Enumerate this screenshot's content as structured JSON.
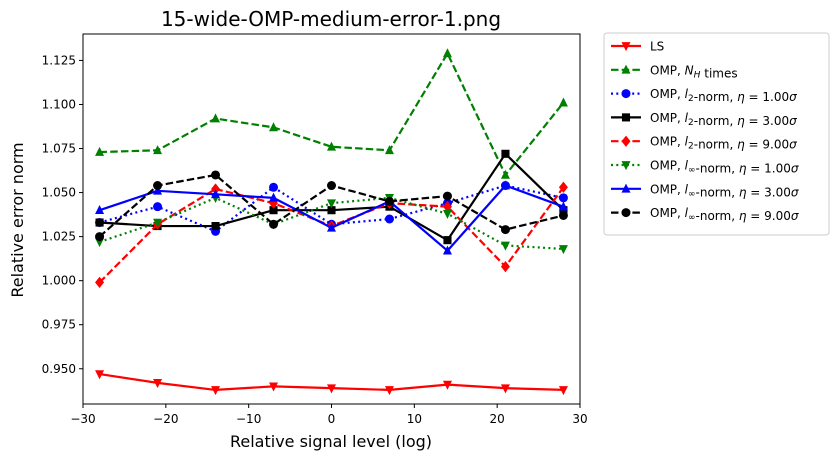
{
  "chart_data": {
    "type": "line",
    "title": "15-wide-OMP-medium-error-1.png",
    "xlabel": "Relative signal level (log)",
    "ylabel": "Relative error norm",
    "xlim": [
      -30,
      30
    ],
    "ylim": [
      0.93,
      1.14
    ],
    "xticks": [
      -30,
      -20,
      -10,
      0,
      10,
      20,
      30
    ],
    "yticks": [
      0.95,
      0.975,
      1.0,
      1.025,
      1.05,
      1.075,
      1.1,
      1.125
    ],
    "xtick_labels": [
      "−30",
      "−20",
      "−10",
      "0",
      "10",
      "20",
      "30"
    ],
    "ytick_labels": [
      "0.950",
      "0.975",
      "1.000",
      "1.025",
      "1.050",
      "1.075",
      "1.100",
      "1.125"
    ],
    "grid": false,
    "legend_position": "outside-right-top",
    "x": [
      -28,
      -21,
      -14,
      -7,
      0,
      7,
      14,
      21,
      28
    ],
    "series": [
      {
        "name": "LS",
        "legend_parts": [
          {
            "t": "LS"
          }
        ],
        "color": "#ff0000",
        "dash": "solid",
        "marker": "triangle-down",
        "values": [
          0.947,
          0.942,
          0.938,
          0.94,
          0.939,
          0.938,
          0.941,
          0.939,
          0.938
        ]
      },
      {
        "name": "OMP, N_H times",
        "legend_parts": [
          {
            "t": "OMP, "
          },
          {
            "t": "N",
            "i": true
          },
          {
            "t": "H",
            "i": true,
            "sub": true
          },
          {
            "t": " times"
          }
        ],
        "color": "#008000",
        "dash": "dashed",
        "marker": "triangle-up",
        "values": [
          1.073,
          1.074,
          1.092,
          1.087,
          1.076,
          1.074,
          1.129,
          1.06,
          1.101
        ]
      },
      {
        "name": "OMP, l_2-norm, η = 1.00σ",
        "legend_parts": [
          {
            "t": "OMP, "
          },
          {
            "t": "l",
            "i": true
          },
          {
            "t": "2",
            "sub": true
          },
          {
            "t": "-norm, "
          },
          {
            "t": "η",
            "i": true
          },
          {
            "t": " = 1.00"
          },
          {
            "t": "σ",
            "i": true
          }
        ],
        "color": "#0000ff",
        "dash": "dotted",
        "marker": "circle",
        "values": [
          1.033,
          1.042,
          1.028,
          1.053,
          1.032,
          1.035,
          1.044,
          1.054,
          1.047
        ]
      },
      {
        "name": "OMP, l_2-norm, η = 3.00σ",
        "legend_parts": [
          {
            "t": "OMP, "
          },
          {
            "t": "l",
            "i": true
          },
          {
            "t": "2",
            "sub": true
          },
          {
            "t": "-norm, "
          },
          {
            "t": "η",
            "i": true
          },
          {
            "t": " = 3.00"
          },
          {
            "t": "σ",
            "i": true
          }
        ],
        "color": "#000000",
        "dash": "solid",
        "marker": "square",
        "values": [
          1.033,
          1.031,
          1.031,
          1.04,
          1.04,
          1.042,
          1.023,
          1.072,
          1.04
        ]
      },
      {
        "name": "OMP, l_2-norm, η = 9.00σ",
        "legend_parts": [
          {
            "t": "OMP, "
          },
          {
            "t": "l",
            "i": true
          },
          {
            "t": "2",
            "sub": true
          },
          {
            "t": "-norm, "
          },
          {
            "t": "η",
            "i": true
          },
          {
            "t": " = 9.00"
          },
          {
            "t": "σ",
            "i": true
          }
        ],
        "color": "#ff0000",
        "dash": "dashed",
        "marker": "diamond",
        "values": [
          0.999,
          1.032,
          1.052,
          1.044,
          1.031,
          1.044,
          1.042,
          1.008,
          1.053
        ]
      },
      {
        "name": "OMP, l_∞-norm, η = 1.00σ",
        "legend_parts": [
          {
            "t": "OMP, "
          },
          {
            "t": "l",
            "i": true
          },
          {
            "t": "∞",
            "sub": true
          },
          {
            "t": "-norm, "
          },
          {
            "t": "η",
            "i": true
          },
          {
            "t": " = 1.00"
          },
          {
            "t": "σ",
            "i": true
          }
        ],
        "color": "#008000",
        "dash": "dotted",
        "marker": "triangle-down",
        "values": [
          1.022,
          1.033,
          1.047,
          1.032,
          1.044,
          1.047,
          1.038,
          1.02,
          1.018
        ]
      },
      {
        "name": "OMP, l_∞-norm, η = 3.00σ",
        "legend_parts": [
          {
            "t": "OMP, "
          },
          {
            "t": "l",
            "i": true
          },
          {
            "t": "∞",
            "sub": true
          },
          {
            "t": "-norm, "
          },
          {
            "t": "η",
            "i": true
          },
          {
            "t": " = 3.00"
          },
          {
            "t": "σ",
            "i": true
          }
        ],
        "color": "#0000ff",
        "dash": "solid",
        "marker": "triangle-up",
        "values": [
          1.04,
          1.051,
          1.049,
          1.047,
          1.03,
          1.045,
          1.017,
          1.054,
          1.042
        ]
      },
      {
        "name": "OMP, l_∞-norm, η = 9.00σ",
        "legend_parts": [
          {
            "t": "OMP, "
          },
          {
            "t": "l",
            "i": true
          },
          {
            "t": "∞",
            "sub": true
          },
          {
            "t": "-norm, "
          },
          {
            "t": "η",
            "i": true
          },
          {
            "t": " = 9.00"
          },
          {
            "t": "σ",
            "i": true
          }
        ],
        "color": "#000000",
        "dash": "dashed",
        "marker": "circle",
        "values": [
          1.025,
          1.054,
          1.06,
          1.032,
          1.054,
          1.045,
          1.048,
          1.029,
          1.037
        ]
      }
    ]
  }
}
